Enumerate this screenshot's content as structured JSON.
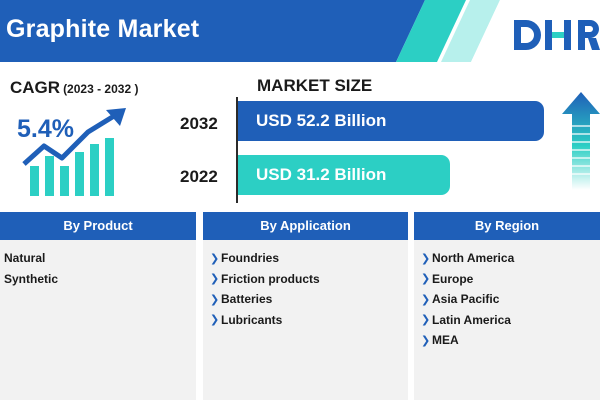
{
  "header": {
    "title": "Graphite Market",
    "logo_text": "DHR",
    "colors": {
      "primary": "#1f5fb8",
      "accent": "#2ccfc4",
      "stripe": "#b7f0ec"
    }
  },
  "cagr": {
    "label": "CAGR",
    "period": "(2023 - 2032 )",
    "value": "5.4%",
    "graphic_icon": "growth-bars-arrow-icon"
  },
  "market_size": {
    "heading": "MARKET SIZE",
    "rows": [
      {
        "year": "2032",
        "value_label": "USD 52.2 Billion",
        "value": 52.2,
        "color": "#1f5fb8"
      },
      {
        "year": "2022",
        "value_label": "USD 31.2 Billion",
        "value": 31.2,
        "color": "#2ccfc4"
      }
    ],
    "trend_icon": "up-arrow-icon"
  },
  "segments": {
    "product": {
      "title": "By Product",
      "items": [
        "Natural",
        "Synthetic"
      ]
    },
    "application": {
      "title": "By Application",
      "items": [
        "Foundries",
        "Friction products",
        "Batteries",
        "Lubricants"
      ]
    },
    "region": {
      "title": "By Region",
      "items": [
        "North America",
        "Europe",
        "Asia Pacific",
        "Latin America",
        "MEA"
      ]
    }
  }
}
